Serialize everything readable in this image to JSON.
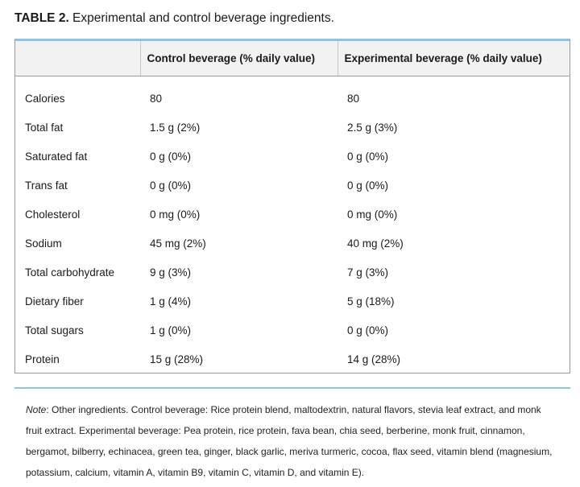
{
  "caption": {
    "label": "TABLE 2.",
    "title": " Experimental and control beverage ingredients."
  },
  "table": {
    "headers": [
      "",
      "Control beverage (% daily value)",
      "Experimental beverage (% daily value)"
    ],
    "rows": [
      [
        "Calories",
        "80",
        "80"
      ],
      [
        "Total fat",
        "1.5 g (2%)",
        "2.5 g (3%)"
      ],
      [
        "Saturated fat",
        "0 g (0%)",
        "0 g (0%)"
      ],
      [
        "Trans fat",
        "0 g (0%)",
        "0 g (0%)"
      ],
      [
        "Cholesterol",
        "0 mg (0%)",
        "0 mg (0%)"
      ],
      [
        "Sodium",
        "45 mg (2%)",
        "40 mg (2%)"
      ],
      [
        "Total carbohydrate",
        "9 g (3%)",
        "7 g (3%)"
      ],
      [
        "Dietary fiber",
        "1 g (4%)",
        "5 g (18%)"
      ],
      [
        "Total sugars",
        "1 g (0%)",
        "0 g (0%)"
      ],
      [
        "Protein",
        "15 g (28%)",
        "14 g (28%)"
      ]
    ]
  },
  "note": {
    "label": "Note",
    "text": ": Other ingredients. Control beverage: Rice protein blend, maltodextrin, natural flavors, stevia leaf extract, and monk fruit extract. Experimental beverage: Pea protein, rice protein, fava bean, chia seed, berberine, monk fruit, cinnamon, bergamot, bilberry, echinacea, green tea, ginger, black garlic, meriva turmeric, cocoa, flax seed, vitamin blend (magnesium, potassium, calcium, vitamin A, vitamin B9, vitamin C, vitamin D, and vitamin E)."
  },
  "colors": {
    "accent_rule": "#8fc3de",
    "header_bg": "#f2f2f2",
    "border": "#9a9a9a"
  }
}
